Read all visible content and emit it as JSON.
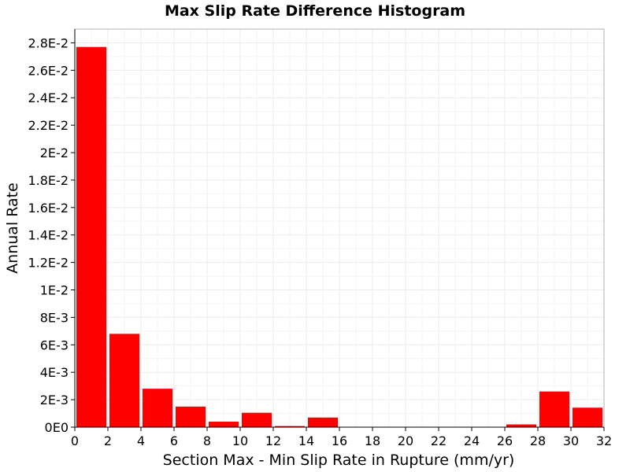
{
  "chart_data": {
    "type": "bar",
    "title": "Max Slip Rate Difference Histogram",
    "xlabel": "Section Max - Min Slip Rate in Rupture (mm/yr)",
    "ylabel": "Annual Rate",
    "xlim": [
      0,
      32
    ],
    "ylim": [
      0,
      0.029
    ],
    "bin_width": 2,
    "x": [
      1,
      3,
      5,
      7,
      9,
      11,
      13,
      15,
      17,
      19,
      21,
      23,
      25,
      27,
      29,
      31
    ],
    "values": [
      0.0277,
      0.0068,
      0.0028,
      0.0015,
      0.0004,
      0.00105,
      8e-05,
      0.0007,
      0,
      0,
      0,
      0,
      0,
      0.0002,
      0.0026,
      0.00142
    ],
    "x_ticks": [
      0,
      2,
      4,
      6,
      8,
      10,
      12,
      14,
      16,
      18,
      20,
      22,
      24,
      26,
      28,
      30,
      32
    ],
    "x_tick_labels": [
      "0",
      "2",
      "4",
      "6",
      "8",
      "10",
      "12",
      "14",
      "16",
      "18",
      "20",
      "22",
      "24",
      "26",
      "28",
      "30",
      "32"
    ],
    "y_ticks": [
      0,
      0.002,
      0.004,
      0.006,
      0.008,
      0.01,
      0.012,
      0.014,
      0.016,
      0.018,
      0.02,
      0.022,
      0.024,
      0.026,
      0.028
    ],
    "y_tick_labels": [
      "0E0",
      "2E-3",
      "4E-3",
      "6E-3",
      "8E-3",
      "1E-2",
      "1.2E-2",
      "1.4E-2",
      "1.6E-2",
      "1.8E-2",
      "2E-2",
      "2.2E-2",
      "2.4E-2",
      "2.6E-2",
      "2.8E-2"
    ],
    "grid": true,
    "bar_color": "#ff0000",
    "grid_color": "#ebebeb",
    "legend": "none"
  }
}
